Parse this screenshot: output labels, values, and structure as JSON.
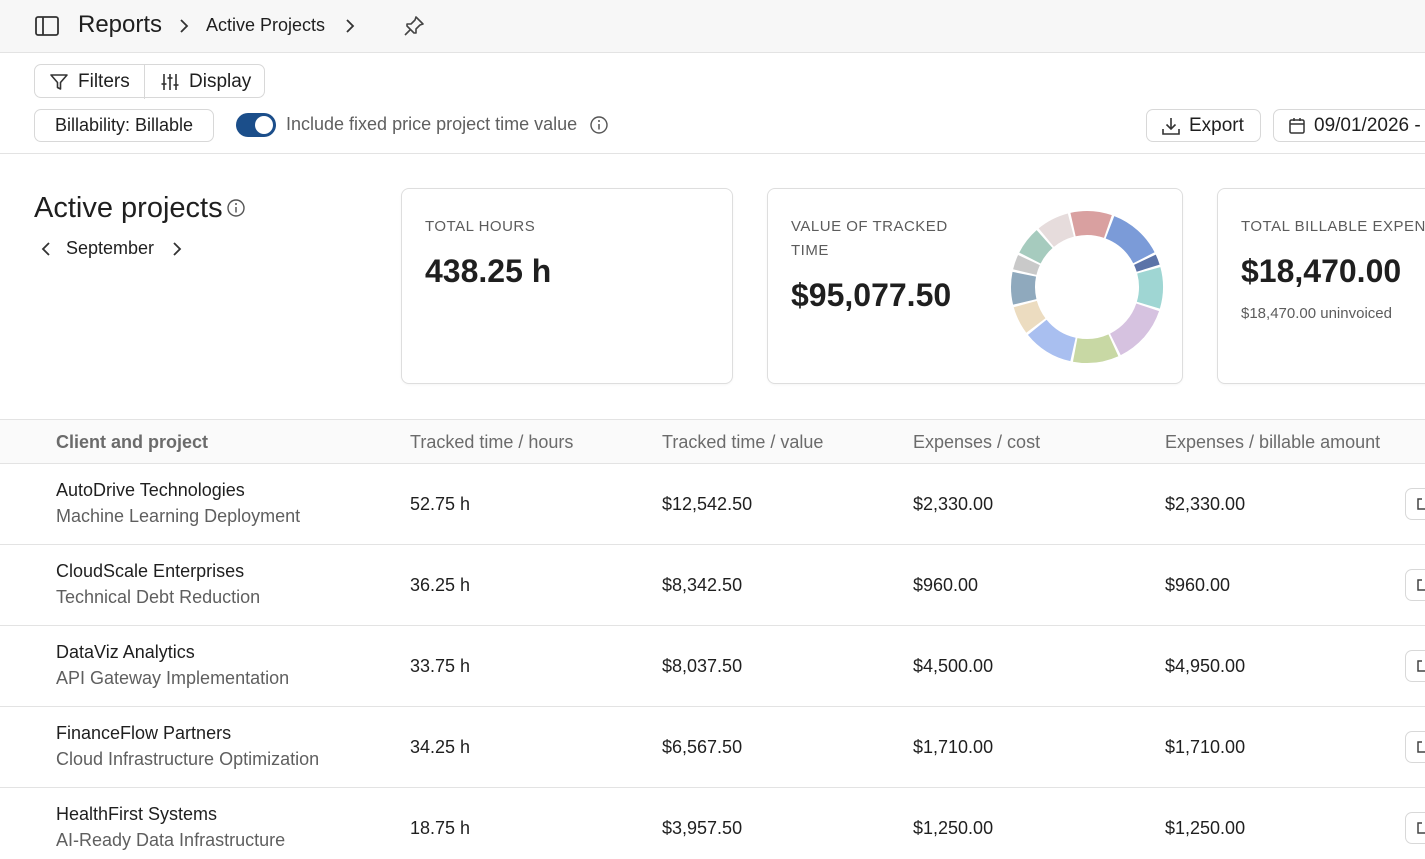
{
  "breadcrumb": {
    "root": "Reports",
    "current": "Active Projects"
  },
  "toolbar": {
    "filters_label": "Filters",
    "display_label": "Display",
    "billability_label": "Billability: Billable",
    "toggle_label": "Include fixed price project time value",
    "toggle_on": true,
    "export_label": "Export",
    "date_label": "09/01/2026 -"
  },
  "section": {
    "title": "Active projects",
    "month": "September"
  },
  "cards": {
    "hours": {
      "label": "TOTAL HOURS",
      "value": "438.25 h"
    },
    "value": {
      "label": "VALUE OF TRACKED TIME",
      "amount": "$95,077.50",
      "donut_colors": [
        "#7b9bd8",
        "#5c73a8",
        "#9fd6d3",
        "#d6c2e0",
        "#c8d8a4",
        "#a9bff0",
        "#ecdcc0",
        "#8fa9bd",
        "#c9c9c9",
        "#a6cbbe",
        "#e6dcdc",
        "#d9a0a0"
      ],
      "donut_shares": [
        13,
        3,
        10,
        14,
        11,
        12,
        7,
        8,
        4,
        7,
        8,
        10
      ]
    },
    "expenses": {
      "label": "TOTAL BILLABLE EXPENS",
      "amount": "$18,470.00",
      "sub": "$18,470.00 uninvoiced"
    }
  },
  "table": {
    "headers": [
      "Client and project",
      "Tracked time / hours",
      "Tracked time / value",
      "Expenses / cost",
      "Expenses / billable amount"
    ],
    "rows": [
      {
        "client": "AutoDrive Technologies",
        "project": "Machine Learning Deployment",
        "hours": "52.75 h",
        "value": "$12,542.50",
        "cost": "$2,330.00",
        "billable": "$2,330.00"
      },
      {
        "client": "CloudScale Enterprises",
        "project": "Technical Debt Reduction",
        "hours": "36.25 h",
        "value": "$8,342.50",
        "cost": "$960.00",
        "billable": "$960.00"
      },
      {
        "client": "DataViz Analytics",
        "project": "API Gateway Implementation",
        "hours": "33.75 h",
        "value": "$8,037.50",
        "cost": "$4,500.00",
        "billable": "$4,950.00"
      },
      {
        "client": "FinanceFlow Partners",
        "project": "Cloud Infrastructure Optimization",
        "hours": "34.25 h",
        "value": "$6,567.50",
        "cost": "$1,710.00",
        "billable": "$1,710.00"
      },
      {
        "client": "HealthFirst Systems",
        "project": "AI-Ready Data Infrastructure",
        "hours": "18.75 h",
        "value": "$3,957.50",
        "cost": "$1,250.00",
        "billable": "$1,250.00"
      }
    ]
  },
  "icons": {
    "sidebar": "sidebar-toggle-icon",
    "chevron": "chevron-right-icon",
    "pin": "pin-icon",
    "filter": "filter-icon",
    "display": "sliders-icon",
    "info": "info-icon",
    "export": "download-icon",
    "calendar": "calendar-icon",
    "row_action": "open-icon"
  },
  "colors": {
    "toggle": "#1b4e8a",
    "text": "#1f1f1f",
    "muted": "#5f5f5f",
    "border": "#d8d8d8"
  }
}
